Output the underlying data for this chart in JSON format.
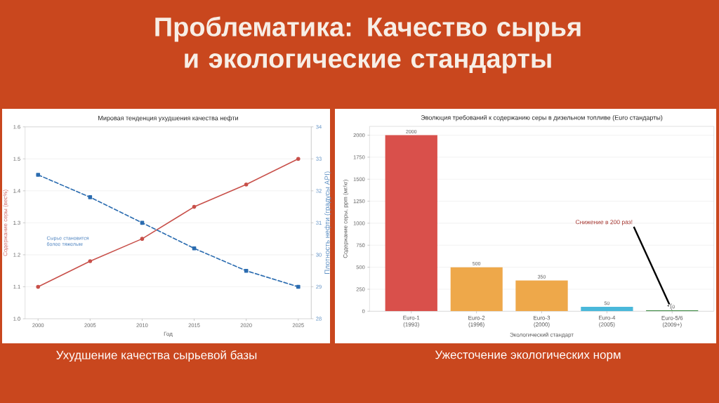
{
  "chart_data": [
    {
      "type": "other",
      "title": "Проблематика: Качество сырья и экологические стандарты"
    },
    {
      "type": "line",
      "title": "Мировая тенденция ухудшения качества нефти",
      "xlabel": "Год",
      "ylabel": "Содержание серы (вес%)",
      "y2label": "Плотность нефти (градусы API)",
      "x": [
        2000,
        2005,
        2010,
        2015,
        2020,
        2025
      ],
      "series": [
        {
          "color": "#c8504a",
          "values": [
            1.1,
            1.18,
            1.25,
            1.35,
            1.42,
            1.5
          ],
          "marker": "circle",
          "line_style": "solid"
        },
        {
          "color": "#2b6cb0",
          "values": [
            32.5,
            31.8,
            31.0,
            30.2,
            29.5,
            29.0
          ],
          "axis": "y2",
          "marker": "square",
          "line_style": "dashed"
        }
      ],
      "xlim": [
        1998.75,
        2026.25
      ],
      "xticks": [
        2000,
        2005,
        2010,
        2015,
        2020,
        2025
      ],
      "ylim": [
        1.0,
        1.6
      ],
      "yticks": [
        {
          "value": 1.0,
          "label": "1.0"
        },
        1.1,
        1.2,
        1.3,
        1.4,
        1.5,
        1.6
      ],
      "y2lim": [
        28,
        34
      ],
      "y2ticks": [
        28,
        29,
        30,
        31,
        32,
        33,
        34
      ],
      "grid": "y",
      "annotations": [
        "Сырье становится более тяжелым",
        "Ухудшение качества сырьевой базы"
      ]
    },
    {
      "type": "bar",
      "title": "Эволюция требований к содержанию серы в дизельном топливе (Euro стандарты)",
      "xlabel": "Экологический стандарт",
      "ylabel": "Содержание серы, ppm (мг/кг)",
      "categories": [
        "Euro-1 (1993)",
        "Euro-2 (1996)",
        "Euro-3 (2000)",
        "Euro-4 (2005)",
        "Euro-5/6 (2009+)"
      ],
      "values": [
        2000,
        500,
        350,
        50,
        10
      ],
      "colors": [
        "#d9504b",
        "#eea84a",
        "#eea84a",
        "#4ab8da",
        "#3a8a40"
      ],
      "data_labels": true,
      "ylim": [
        0,
        2100
      ],
      "yticks": [
        0,
        250,
        500,
        750,
        1000,
        1250,
        1500,
        1750,
        2000
      ],
      "grid": "y",
      "annotations": [
        {
          "text": "Снижение в 200 раз!",
          "x": "Euro-5/6 (2009+)",
          "y": 10
        },
        "Ужесточение экологических норм"
      ]
    }
  ]
}
